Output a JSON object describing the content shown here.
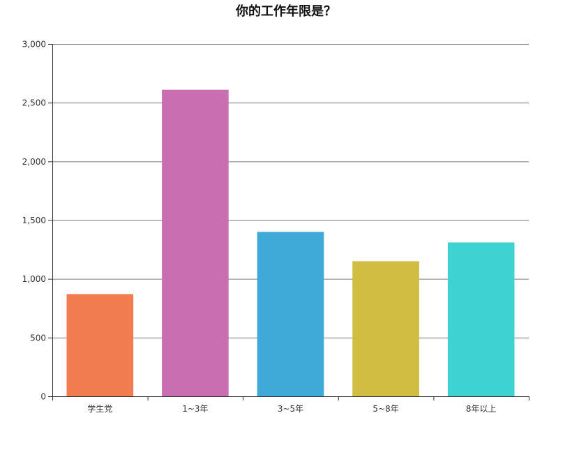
{
  "chart_data": {
    "type": "bar",
    "title": "你的工作年限是？",
    "xlabel": "",
    "ylabel": "",
    "categories": [
      "学生党",
      "1~3年",
      "3~5年",
      "5~8年",
      "8年以上"
    ],
    "values": [
      870,
      2610,
      1400,
      1150,
      1310
    ],
    "colors": [
      "#f07c50",
      "#c86eb1",
      "#3fa9d8",
      "#d1bd41",
      "#3fd2d3"
    ],
    "ylim": [
      0,
      3000
    ],
    "yticks": [
      0,
      500,
      1000,
      1500,
      2000,
      2500,
      3000
    ],
    "ytick_labels": [
      "0",
      "500",
      "1,000",
      "1,500",
      "2,000",
      "2,500",
      "3,000"
    ],
    "grid": true,
    "legend": "none"
  }
}
